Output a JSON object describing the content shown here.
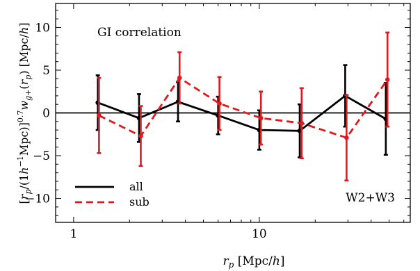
{
  "chart_data": {
    "type": "line",
    "annotation": "GI correlation",
    "field_label": "W2+W3",
    "xlabel": "r_p [Mpc/h]",
    "xlabel_parts": {
      "var": "r",
      "sub": "p",
      "unit": " [Mpc/",
      "unit_var": "h",
      "close": "]"
    },
    "ylabel": "[r_p/(1h^-1 Mpc)]^0.7 w_g+(r_p) [Mpc/h]",
    "xscale": "log",
    "xlim": [
      0.8,
      65
    ],
    "ylim": [
      -12.8,
      12.8
    ],
    "x_ticks": [
      1,
      10
    ],
    "x_tick_labels": [
      "1",
      "10"
    ],
    "y_ticks": [
      -10,
      -5,
      0,
      5,
      10
    ],
    "y_tick_labels": [
      "−10",
      "−5",
      "0",
      "5",
      "10"
    ],
    "zero_line": true,
    "legend": {
      "position": "bottom-left"
    },
    "colors": {
      "all": "#000000",
      "sub": "#e0191e"
    },
    "series": [
      {
        "name": "all",
        "style": "solid",
        "x": [
          1.35,
          2.25,
          3.65,
          6.0,
          10.0,
          16.5,
          29.0,
          48.0
        ],
        "y": [
          1.2,
          -0.6,
          1.3,
          -0.3,
          -2.0,
          -2.1,
          2.0,
          -0.7
        ],
        "err_low": [
          3.2,
          2.8,
          2.3,
          2.2,
          2.3,
          3.1,
          3.6,
          4.2
        ],
        "err_high": [
          3.2,
          2.8,
          2.3,
          2.2,
          2.3,
          3.1,
          3.6,
          4.2
        ]
      },
      {
        "name": "sub",
        "style": "dashed",
        "x": [
          1.37,
          2.3,
          3.72,
          6.1,
          10.2,
          16.9,
          29.5,
          49.0
        ],
        "y": [
          -0.3,
          -2.7,
          4.1,
          1.1,
          -0.6,
          -1.2,
          -2.9,
          3.9
        ],
        "err_low": [
          4.4,
          3.5,
          3.0,
          3.1,
          3.1,
          4.1,
          5.0,
          5.5
        ],
        "err_high": [
          4.4,
          3.5,
          3.0,
          3.1,
          3.1,
          4.1,
          5.0,
          5.5
        ]
      }
    ]
  }
}
